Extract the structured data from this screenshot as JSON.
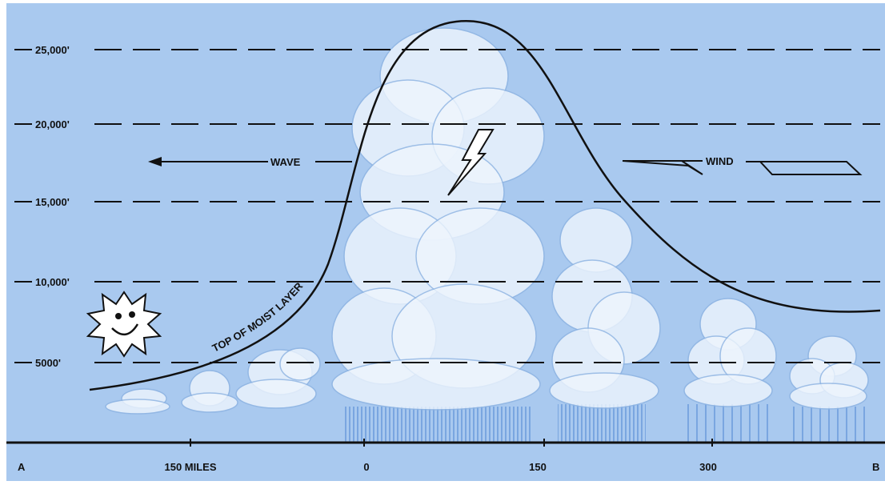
{
  "altitude_labels": [
    "25,000'",
    "20,000'",
    "15,000'",
    "10,000'",
    "5000'"
  ],
  "arrows": {
    "wave": "WAVE",
    "wind": "WIND"
  },
  "curve_label": "TOP OF MOIST LAYER",
  "ground_labels": [
    "A",
    "150 MILES",
    "0",
    "150",
    "300",
    "B"
  ]
}
